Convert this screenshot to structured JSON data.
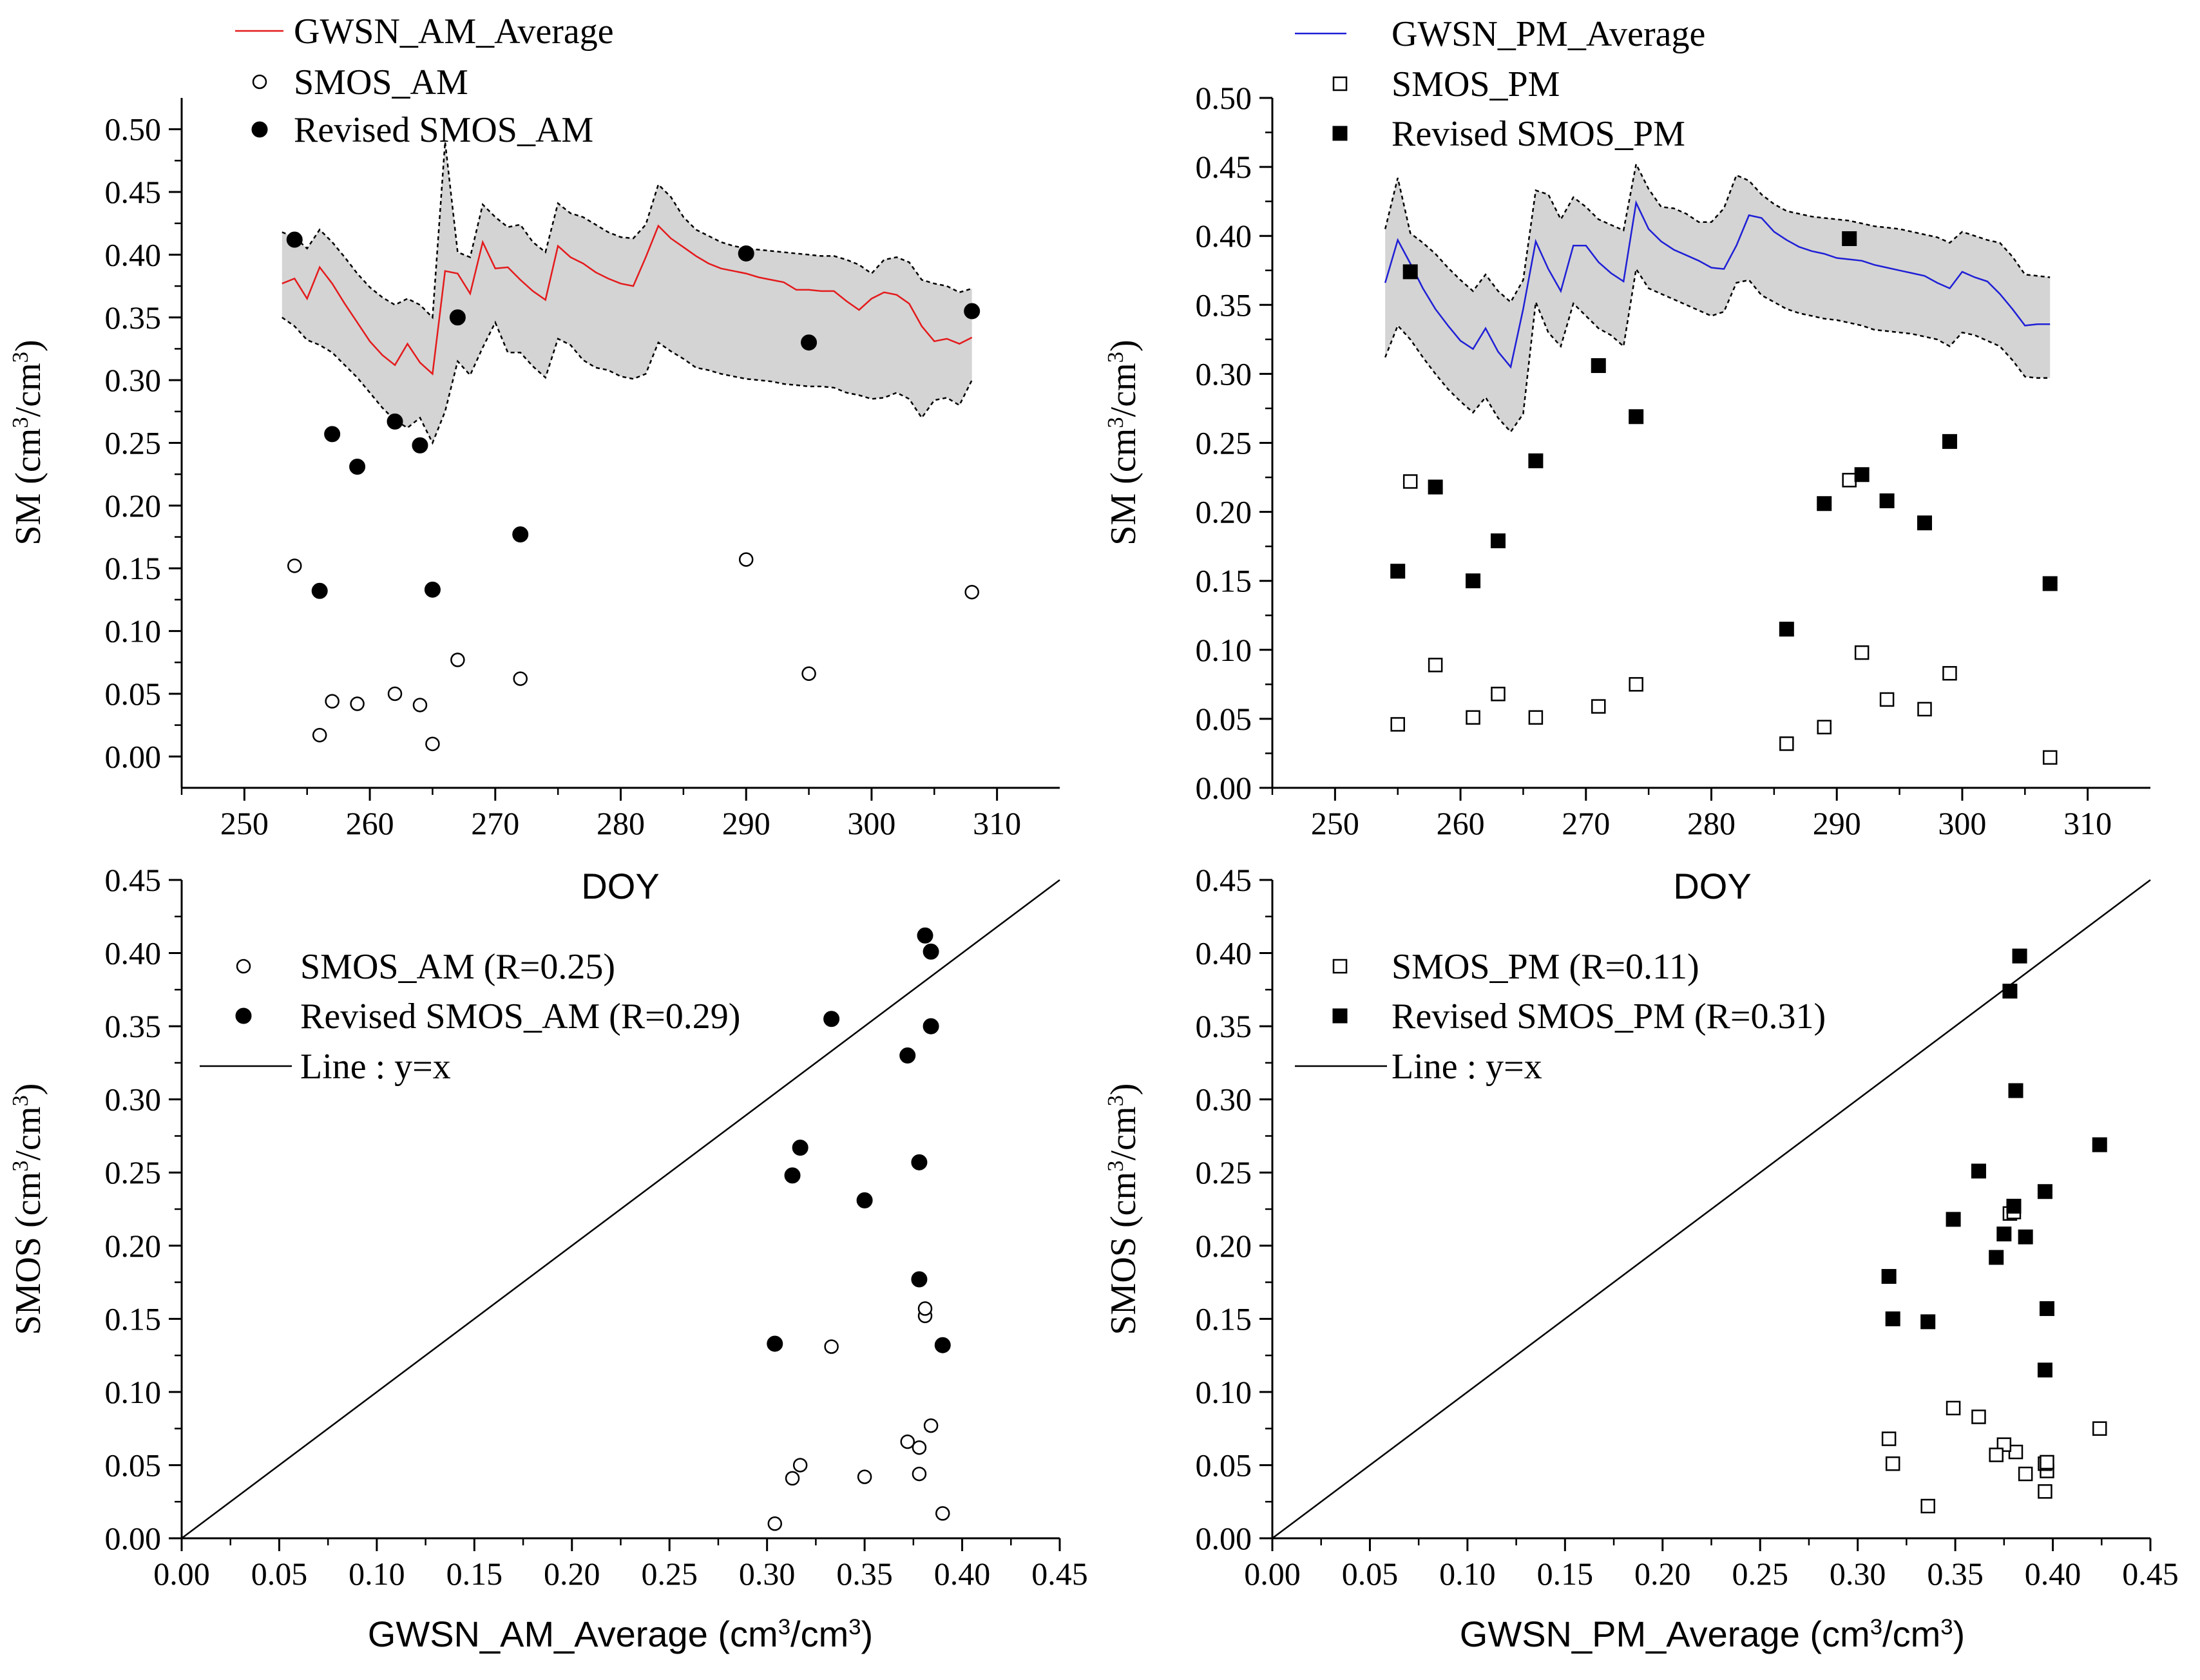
{
  "figure": {
    "background": "#ffffff"
  },
  "chart_data": [
    {
      "id": "top_left",
      "type": "line",
      "title": "",
      "xlabel": "DOY",
      "ylabel": "SM (cm³/cm³)",
      "xlim": [
        245,
        315
      ],
      "ylim": [
        -0.025,
        0.525
      ],
      "xticks": [
        250,
        260,
        270,
        280,
        290,
        300,
        310
      ],
      "yticks": [
        0.0,
        0.05,
        0.1,
        0.15,
        0.2,
        0.25,
        0.3,
        0.35,
        0.4,
        0.45,
        0.5
      ],
      "legend": {
        "position": "top-left",
        "entries": [
          "GWSN_AM_Average",
          "SMOS_AM",
          "Revised SMOS_AM"
        ]
      },
      "colors": {
        "line": "#e41a1c",
        "band": "#d4d4d4",
        "marker": "#000000"
      },
      "band": {
        "x": [
          253,
          254,
          255,
          256,
          257,
          258,
          259,
          260,
          261,
          262,
          263,
          264,
          265,
          266,
          267,
          268,
          269,
          270,
          271,
          272,
          273,
          274,
          275,
          276,
          277,
          278,
          279,
          280,
          281,
          282,
          283,
          284,
          285,
          286,
          287,
          288,
          289,
          290,
          291,
          292,
          293,
          294,
          295,
          296,
          297,
          298,
          299,
          300,
          301,
          302,
          303,
          304,
          305,
          306,
          307,
          308
        ],
        "lower": [
          0.35,
          0.343,
          0.332,
          0.328,
          0.322,
          0.312,
          0.302,
          0.29,
          0.278,
          0.268,
          0.262,
          0.27,
          0.25,
          0.275,
          0.315,
          0.304,
          0.326,
          0.346,
          0.322,
          0.322,
          0.311,
          0.302,
          0.333,
          0.328,
          0.316,
          0.31,
          0.308,
          0.303,
          0.301,
          0.305,
          0.33,
          0.323,
          0.317,
          0.31,
          0.308,
          0.305,
          0.303,
          0.301,
          0.3,
          0.299,
          0.297,
          0.296,
          0.295,
          0.295,
          0.294,
          0.29,
          0.288,
          0.285,
          0.286,
          0.29,
          0.285,
          0.27,
          0.284,
          0.286,
          0.28,
          0.3
        ],
        "upper": [
          0.418,
          0.414,
          0.405,
          0.42,
          0.41,
          0.398,
          0.385,
          0.374,
          0.366,
          0.36,
          0.365,
          0.36,
          0.35,
          0.49,
          0.402,
          0.398,
          0.44,
          0.43,
          0.422,
          0.424,
          0.41,
          0.402,
          0.441,
          0.433,
          0.43,
          0.424,
          0.418,
          0.414,
          0.413,
          0.424,
          0.456,
          0.446,
          0.43,
          0.42,
          0.415,
          0.41,
          0.407,
          0.405,
          0.404,
          0.403,
          0.402,
          0.401,
          0.4,
          0.399,
          0.399,
          0.396,
          0.392,
          0.385,
          0.396,
          0.398,
          0.394,
          0.38,
          0.377,
          0.375,
          0.37,
          0.373
        ]
      },
      "series": [
        {
          "name": "GWSN_AM_Average",
          "kind": "line",
          "x": [
            253,
            254,
            255,
            256,
            257,
            258,
            259,
            260,
            261,
            262,
            263,
            264,
            265,
            266,
            267,
            268,
            269,
            270,
            271,
            272,
            273,
            274,
            275,
            276,
            277,
            278,
            279,
            280,
            281,
            282,
            283,
            284,
            285,
            286,
            287,
            288,
            289,
            290,
            291,
            292,
            293,
            294,
            295,
            296,
            297,
            298,
            299,
            300,
            301,
            302,
            303,
            304,
            305,
            306,
            307,
            308
          ],
          "y": [
            0.377,
            0.381,
            0.365,
            0.39,
            0.377,
            0.361,
            0.346,
            0.331,
            0.32,
            0.312,
            0.329,
            0.314,
            0.305,
            0.387,
            0.385,
            0.369,
            0.41,
            0.389,
            0.39,
            0.38,
            0.371,
            0.364,
            0.407,
            0.398,
            0.393,
            0.386,
            0.381,
            0.377,
            0.375,
            0.398,
            0.423,
            0.413,
            0.406,
            0.399,
            0.393,
            0.389,
            0.387,
            0.385,
            0.382,
            0.38,
            0.378,
            0.372,
            0.372,
            0.371,
            0.371,
            0.363,
            0.356,
            0.365,
            0.37,
            0.368,
            0.361,
            0.343,
            0.331,
            0.333,
            0.329,
            0.334
          ]
        },
        {
          "name": "SMOS_AM",
          "kind": "scatter",
          "marker": "open-circle",
          "x": [
            254,
            256,
            257,
            259,
            262,
            264,
            265,
            267,
            272,
            290,
            295,
            308
          ],
          "y": [
            0.152,
            0.017,
            0.044,
            0.042,
            0.05,
            0.041,
            0.01,
            0.077,
            0.062,
            0.157,
            0.066,
            0.131
          ]
        },
        {
          "name": "Revised SMOS_AM",
          "kind": "scatter",
          "marker": "filled-circle",
          "x": [
            254,
            256,
            257,
            259,
            262,
            264,
            265,
            267,
            272,
            290,
            295,
            308
          ],
          "y": [
            0.412,
            0.132,
            0.257,
            0.231,
            0.267,
            0.248,
            0.133,
            0.35,
            0.177,
            0.401,
            0.33,
            0.355
          ]
        }
      ]
    },
    {
      "id": "top_right",
      "type": "line",
      "title": "",
      "xlabel": "DOY",
      "ylabel": "SM (cm³/cm³)",
      "xlim": [
        245,
        315
      ],
      "ylim": [
        0.0,
        0.5
      ],
      "xticks": [
        250,
        260,
        270,
        280,
        290,
        300,
        310
      ],
      "yticks": [
        0.0,
        0.05,
        0.1,
        0.15,
        0.2,
        0.25,
        0.3,
        0.35,
        0.4,
        0.45,
        0.5
      ],
      "legend": {
        "position": "top-left",
        "entries": [
          "GWSN_PM_Average",
          "SMOS_PM",
          "Revised SMOS_PM"
        ]
      },
      "colors": {
        "line": "#1f1fd6",
        "band": "#d4d4d4",
        "marker": "#000000"
      },
      "band": {
        "x": [
          254,
          255,
          256,
          257,
          258,
          259,
          260,
          261,
          262,
          263,
          264,
          265,
          266,
          267,
          268,
          269,
          270,
          271,
          272,
          273,
          274,
          275,
          276,
          277,
          278,
          279,
          280,
          281,
          282,
          283,
          284,
          285,
          286,
          287,
          288,
          289,
          290,
          291,
          292,
          293,
          294,
          295,
          296,
          297,
          298,
          299,
          300,
          301,
          302,
          303,
          304,
          305,
          306,
          307
        ],
        "lower": [
          0.312,
          0.335,
          0.325,
          0.312,
          0.3,
          0.289,
          0.28,
          0.272,
          0.283,
          0.268,
          0.258,
          0.271,
          0.352,
          0.33,
          0.32,
          0.351,
          0.342,
          0.333,
          0.328,
          0.32,
          0.376,
          0.362,
          0.358,
          0.354,
          0.35,
          0.346,
          0.342,
          0.345,
          0.366,
          0.368,
          0.357,
          0.352,
          0.347,
          0.344,
          0.342,
          0.34,
          0.339,
          0.337,
          0.335,
          0.332,
          0.331,
          0.33,
          0.329,
          0.327,
          0.325,
          0.32,
          0.33,
          0.328,
          0.324,
          0.32,
          0.31,
          0.298,
          0.297,
          0.297
        ],
        "upper": [
          0.405,
          0.442,
          0.402,
          0.395,
          0.387,
          0.377,
          0.368,
          0.36,
          0.372,
          0.36,
          0.352,
          0.368,
          0.433,
          0.43,
          0.412,
          0.428,
          0.421,
          0.412,
          0.408,
          0.404,
          0.452,
          0.434,
          0.421,
          0.42,
          0.416,
          0.41,
          0.41,
          0.42,
          0.444,
          0.44,
          0.43,
          0.423,
          0.418,
          0.416,
          0.414,
          0.413,
          0.412,
          0.411,
          0.409,
          0.407,
          0.406,
          0.405,
          0.403,
          0.401,
          0.399,
          0.395,
          0.403,
          0.4,
          0.397,
          0.395,
          0.385,
          0.372,
          0.371,
          0.37
        ]
      },
      "series": [
        {
          "name": "GWSN_PM_Average",
          "kind": "line",
          "x": [
            254,
            255,
            256,
            257,
            258,
            259,
            260,
            261,
            262,
            263,
            264,
            265,
            266,
            267,
            268,
            269,
            270,
            271,
            272,
            273,
            274,
            275,
            276,
            277,
            278,
            279,
            280,
            281,
            282,
            283,
            284,
            285,
            286,
            287,
            288,
            289,
            290,
            291,
            292,
            293,
            294,
            295,
            296,
            297,
            298,
            299,
            300,
            301,
            302,
            303,
            304,
            305,
            306,
            307
          ],
          "y": [
            0.366,
            0.397,
            0.38,
            0.362,
            0.347,
            0.335,
            0.324,
            0.318,
            0.333,
            0.316,
            0.305,
            0.347,
            0.396,
            0.376,
            0.36,
            0.393,
            0.393,
            0.381,
            0.373,
            0.367,
            0.424,
            0.405,
            0.396,
            0.39,
            0.386,
            0.382,
            0.377,
            0.376,
            0.393,
            0.415,
            0.413,
            0.403,
            0.397,
            0.392,
            0.389,
            0.387,
            0.384,
            0.383,
            0.382,
            0.379,
            0.377,
            0.375,
            0.373,
            0.371,
            0.366,
            0.362,
            0.374,
            0.37,
            0.367,
            0.358,
            0.347,
            0.335,
            0.336,
            0.336
          ]
        },
        {
          "name": "SMOS_PM",
          "kind": "scatter",
          "marker": "open-square",
          "x": [
            255,
            256,
            258,
            261,
            263,
            266,
            271,
            274,
            286,
            289,
            291,
            292,
            294,
            297,
            299,
            307
          ],
          "y": [
            0.046,
            0.222,
            0.089,
            0.051,
            0.068,
            0.051,
            0.059,
            0.075,
            0.032,
            0.044,
            0.223,
            0.098,
            0.064,
            0.057,
            0.083,
            0.022
          ]
        },
        {
          "name": "Revised SMOS_PM",
          "kind": "scatter",
          "marker": "filled-square",
          "x": [
            255,
            256,
            258,
            261,
            263,
            266,
            271,
            274,
            286,
            289,
            291,
            292,
            294,
            297,
            299,
            307
          ],
          "y": [
            0.157,
            0.374,
            0.218,
            0.15,
            0.179,
            0.237,
            0.306,
            0.269,
            0.115,
            0.206,
            0.398,
            0.227,
            0.208,
            0.192,
            0.251,
            0.148
          ]
        }
      ]
    },
    {
      "id": "bottom_left",
      "type": "scatter",
      "title": "",
      "xlabel": "GWSN_AM_Average (cm³/cm³)",
      "ylabel": "SMOS (cm³/cm³)",
      "xlim": [
        0.0,
        0.45
      ],
      "ylim": [
        0.0,
        0.45
      ],
      "xticks": [
        0.0,
        0.05,
        0.1,
        0.15,
        0.2,
        0.25,
        0.3,
        0.35,
        0.4,
        0.45
      ],
      "yticks": [
        0.0,
        0.05,
        0.1,
        0.15,
        0.2,
        0.25,
        0.3,
        0.35,
        0.4,
        0.45
      ],
      "legend": {
        "position": "top-left",
        "entries": [
          "SMOS_AM (R=0.25)",
          "Revised SMOS_AM (R=0.29)",
          "Line : y=x"
        ]
      },
      "colors": {
        "marker": "#000000",
        "line": "#000000"
      },
      "series": [
        {
          "name": "SMOS_AM (R=0.25)",
          "kind": "scatter",
          "marker": "open-circle",
          "x": [
            0.381,
            0.39,
            0.378,
            0.35,
            0.317,
            0.313,
            0.304,
            0.372,
            0.378,
            0.384,
            0.333,
            0.381
          ],
          "y": [
            0.152,
            0.017,
            0.044,
            0.042,
            0.05,
            0.041,
            0.01,
            0.066,
            0.062,
            0.077,
            0.131,
            0.157
          ]
        },
        {
          "name": "Revised SMOS_AM (R=0.29)",
          "kind": "scatter",
          "marker": "filled-circle",
          "x": [
            0.381,
            0.39,
            0.378,
            0.35,
            0.317,
            0.313,
            0.304,
            0.372,
            0.378,
            0.384,
            0.333,
            0.384
          ],
          "y": [
            0.412,
            0.132,
            0.257,
            0.231,
            0.267,
            0.248,
            0.133,
            0.33,
            0.177,
            0.401,
            0.355,
            0.35
          ]
        },
        {
          "name": "Line : y=x",
          "kind": "line",
          "x": [
            0.0,
            0.45
          ],
          "y": [
            0.0,
            0.45
          ]
        }
      ]
    },
    {
      "id": "bottom_right",
      "type": "scatter",
      "title": "",
      "xlabel": "GWSN_PM_Average (cm³/cm³)",
      "ylabel": "SMOS (cm³/cm³)",
      "xlim": [
        0.0,
        0.45
      ],
      "ylim": [
        0.0,
        0.45
      ],
      "xticks": [
        0.0,
        0.05,
        0.1,
        0.15,
        0.2,
        0.25,
        0.3,
        0.35,
        0.4,
        0.45
      ],
      "yticks": [
        0.0,
        0.05,
        0.1,
        0.15,
        0.2,
        0.25,
        0.3,
        0.35,
        0.4,
        0.45
      ],
      "legend": {
        "position": "top-left",
        "entries": [
          "SMOS_PM (R=0.11)",
          "Revised SMOS_PM (R=0.31)",
          "Line : y=x"
        ]
      },
      "colors": {
        "marker": "#000000",
        "line": "#000000"
      },
      "series": [
        {
          "name": "SMOS_PM (R=0.11)",
          "kind": "scatter",
          "marker": "open-square",
          "x": [
            0.397,
            0.378,
            0.349,
            0.318,
            0.316,
            0.396,
            0.381,
            0.424,
            0.336,
            0.386,
            0.38,
            0.362,
            0.375,
            0.371,
            0.397,
            0.396
          ],
          "y": [
            0.046,
            0.222,
            0.089,
            0.051,
            0.068,
            0.051,
            0.059,
            0.075,
            0.022,
            0.044,
            0.223,
            0.083,
            0.064,
            0.057,
            0.052,
            0.032
          ]
        },
        {
          "name": "Revised SMOS_PM (R=0.31)",
          "kind": "scatter",
          "marker": "filled-square",
          "x": [
            0.397,
            0.378,
            0.349,
            0.318,
            0.316,
            0.396,
            0.381,
            0.424,
            0.336,
            0.386,
            0.383,
            0.362,
            0.375,
            0.371,
            0.38,
            0.396
          ],
          "y": [
            0.157,
            0.374,
            0.218,
            0.15,
            0.179,
            0.237,
            0.306,
            0.269,
            0.148,
            0.206,
            0.398,
            0.251,
            0.208,
            0.192,
            0.227,
            0.115
          ]
        },
        {
          "name": "Line : y=x",
          "kind": "line",
          "x": [
            0.0,
            0.45
          ],
          "y": [
            0.0,
            0.45
          ]
        }
      ]
    }
  ]
}
